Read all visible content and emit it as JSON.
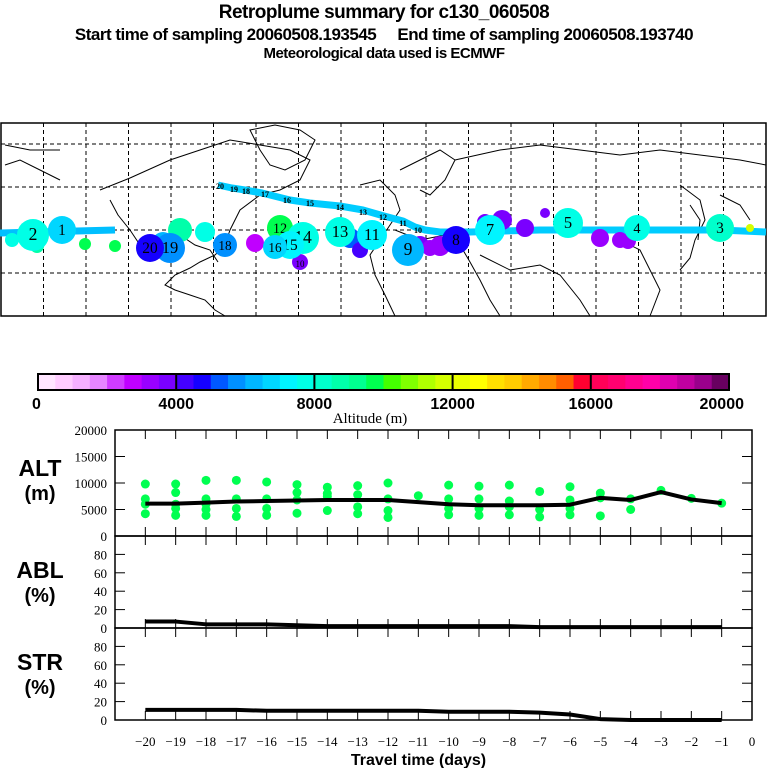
{
  "header": {
    "title": "Retroplume summary for c130_060508",
    "sampling_line": "Start time of sampling 20060508.193545     End time of sampling 20060508.193740",
    "met_line": "Meteorological data used is ECMWF"
  },
  "colorbar": {
    "label": "Altitude (m)",
    "ticks": [
      "0",
      "4000",
      "8000",
      "12000",
      "16000",
      "20000"
    ],
    "min": 0,
    "max": 20000,
    "colors": [
      "#ffe6ff",
      "#ffccff",
      "#f5b0ff",
      "#e685ff",
      "#d03cff",
      "#c000ff",
      "#9900ff",
      "#7a00ff",
      "#4400ff",
      "#1500ff",
      "#0058ff",
      "#0090ff",
      "#00b7ff",
      "#00d6ff",
      "#00f5ff",
      "#00ffe6",
      "#00ffcc",
      "#00ffaa",
      "#00ff90",
      "#00ff50",
      "#44ff00",
      "#80ff00",
      "#b0ff00",
      "#d4ff00",
      "#eaff00",
      "#ffff00",
      "#ffe000",
      "#ffcc00",
      "#ffaa00",
      "#ff8c00",
      "#ff5f00",
      "#ff0030",
      "#ff0058",
      "#ff0070",
      "#ff0090",
      "#ff00a8",
      "#e000b0",
      "#c000a0",
      "#9a008c",
      "#680060"
    ]
  },
  "map": {
    "trajectory_labels": [
      "20",
      "19",
      "18",
      "17",
      "16",
      "15",
      "14",
      "13",
      "12",
      "11",
      "10",
      "9",
      "8",
      "7",
      "6",
      "5",
      "4",
      "3",
      "2",
      "1"
    ],
    "clusters": [
      {
        "label": "2",
        "alt": 7500
      },
      {
        "label": "1",
        "alt": 6500
      },
      {
        "label": "3",
        "alt": 8000
      },
      {
        "label": "4",
        "alt": 7500
      },
      {
        "label": "5",
        "alt": 7500
      },
      {
        "label": "7",
        "alt": 7000
      },
      {
        "label": "8",
        "alt": 4500
      },
      {
        "label": "9",
        "alt": 6000
      },
      {
        "label": "10",
        "alt": 3500
      },
      {
        "label": "11",
        "alt": 7000
      },
      {
        "label": "12",
        "alt": 9500
      },
      {
        "label": "13",
        "alt": 7500
      },
      {
        "label": "14",
        "alt": 7500
      },
      {
        "label": "15",
        "alt": 7000
      },
      {
        "label": "16",
        "alt": 6500
      },
      {
        "label": "17",
        "alt": 6000
      },
      {
        "label": "18",
        "alt": 5500
      },
      {
        "label": "19",
        "alt": 5500
      },
      {
        "label": "20",
        "alt": 4500
      }
    ]
  },
  "chart_data": [
    {
      "type": "line",
      "panel": "ALT",
      "ylabel": "ALT\n(m)",
      "ylabel_line1": "ALT",
      "ylabel_line2": "(m)",
      "ylim": [
        0,
        20000
      ],
      "yticks": [
        "0",
        "5000",
        "10000",
        "15000",
        "20000"
      ],
      "x": [
        -20,
        -19,
        -18,
        -17,
        -16,
        -15,
        -14,
        -13,
        -12,
        -11,
        -10,
        -9,
        -8,
        -7,
        -6,
        -5,
        -4,
        -3,
        -2,
        -1
      ],
      "series": [
        {
          "name": "mean altitude",
          "values": [
            6100,
            6100,
            6300,
            6500,
            6600,
            6700,
            6800,
            6800,
            6800,
            6400,
            6000,
            5800,
            5800,
            5800,
            5900,
            7200,
            6800,
            8300,
            6900,
            6200
          ]
        }
      ],
      "scatter": [
        {
          "x": -20,
          "y": [
            9800,
            7000,
            6000,
            4200
          ]
        },
        {
          "x": -19,
          "y": [
            9800,
            8200,
            6000,
            5200,
            3900
          ]
        },
        {
          "x": -18,
          "y": [
            10500,
            7000,
            6000,
            5000,
            3900
          ]
        },
        {
          "x": -17,
          "y": [
            10500,
            7000,
            5200,
            3700
          ]
        },
        {
          "x": -16,
          "y": [
            10200,
            7000,
            5200,
            3900
          ]
        },
        {
          "x": -15,
          "y": [
            9700,
            8200,
            6800,
            4300
          ]
        },
        {
          "x": -14,
          "y": [
            9200,
            8000,
            7500,
            4800
          ]
        },
        {
          "x": -13,
          "y": [
            9500,
            7800,
            5500,
            4200
          ]
        },
        {
          "x": -12,
          "y": [
            10000,
            7000,
            4800,
            3500
          ]
        },
        {
          "x": -11,
          "y": [
            7600
          ]
        },
        {
          "x": -10,
          "y": [
            9600,
            7000,
            5200,
            4000
          ]
        },
        {
          "x": -9,
          "y": [
            9400,
            7000,
            5200,
            3900
          ]
        },
        {
          "x": -8,
          "y": [
            9600,
            6600,
            5500,
            4000
          ]
        },
        {
          "x": -7,
          "y": [
            8400,
            5000,
            3600
          ]
        },
        {
          "x": -6,
          "y": [
            9300,
            6800,
            5200,
            4000
          ]
        },
        {
          "x": -5,
          "y": [
            8100,
            7200,
            3800
          ]
        },
        {
          "x": -4,
          "y": [
            7000,
            5000
          ]
        },
        {
          "x": -3,
          "y": [
            8600
          ]
        },
        {
          "x": -2,
          "y": [
            7100
          ]
        },
        {
          "x": -1,
          "y": [
            6200
          ]
        }
      ],
      "scatter_color": "#00ff50"
    },
    {
      "type": "line",
      "panel": "ABL",
      "ylabel_line1": "ABL",
      "ylabel_line2": "(%)",
      "ylim": [
        0,
        100
      ],
      "yticks": [
        "0",
        "20",
        "40",
        "60",
        "80"
      ],
      "x": [
        -20,
        -19,
        -18,
        -17,
        -16,
        -15,
        -14,
        -13,
        -12,
        -11,
        -10,
        -9,
        -8,
        -7,
        -6,
        -5,
        -4,
        -3,
        -2,
        -1
      ],
      "series": [
        {
          "name": "ABL fraction",
          "values": [
            7,
            7,
            4,
            4,
            4,
            3,
            2,
            2,
            2,
            2,
            2,
            2,
            2,
            1,
            1,
            1,
            1,
            1,
            1,
            1
          ]
        }
      ]
    },
    {
      "type": "line",
      "panel": "STR",
      "ylabel_line1": "STR",
      "ylabel_line2": "(%)",
      "ylim": [
        0,
        100
      ],
      "yticks": [
        "0",
        "20",
        "40",
        "60",
        "80"
      ],
      "x": [
        -20,
        -19,
        -18,
        -17,
        -16,
        -15,
        -14,
        -13,
        -12,
        -11,
        -10,
        -9,
        -8,
        -7,
        -6,
        -5,
        -4,
        -3,
        -2,
        -1
      ],
      "series": [
        {
          "name": "stratospheric fraction",
          "values": [
            11,
            11,
            11,
            11,
            10,
            10,
            10,
            10,
            10,
            10,
            9,
            9,
            9,
            8,
            6,
            1,
            0,
            0,
            0,
            0
          ]
        }
      ],
      "xlabel": "Travel time (days)",
      "xticks": [
        "−20",
        "−19",
        "−18",
        "−17",
        "−16",
        "−15",
        "−14",
        "−13",
        "−12",
        "−11",
        "−10",
        "−9",
        "−8",
        "−7",
        "−6",
        "−5",
        "−4",
        "−3",
        "−2",
        "−1",
        "0"
      ]
    }
  ]
}
